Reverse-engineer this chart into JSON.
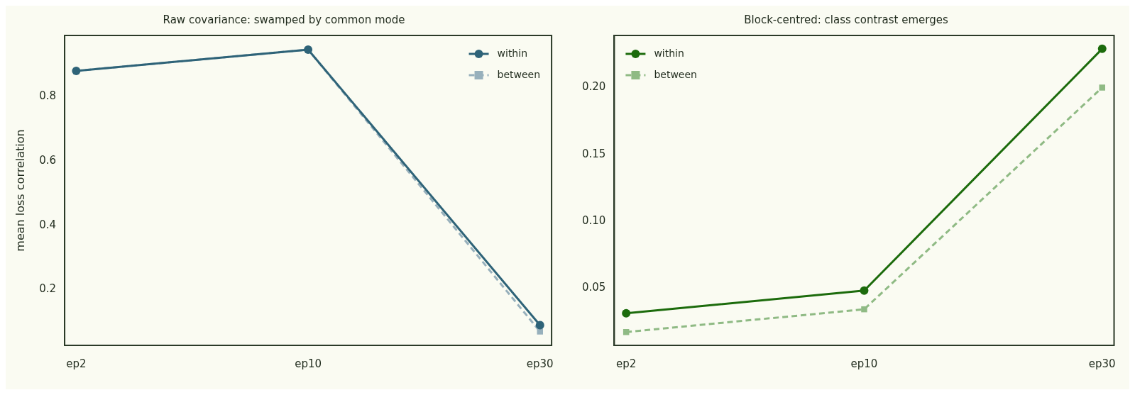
{
  "chart_data": [
    {
      "type": "line",
      "title": "Raw covariance: swamped by common mode",
      "ylabel": "mean loss correlation",
      "categories": [
        "ep2",
        "ep10",
        "ep30"
      ],
      "ylim": [
        0.027,
        0.99
      ],
      "yticks": [
        0.2,
        0.4,
        0.6,
        0.8
      ],
      "grid": false,
      "legend": "top right",
      "series": [
        {
          "name": "within",
          "color": "#2e6378",
          "values": [
            0.88,
            0.946,
            0.09
          ],
          "marker": "circle",
          "line_style": "solid"
        },
        {
          "name": "between",
          "color": "#97b0bc",
          "values": [
            0.88,
            0.946,
            0.07
          ],
          "marker": "square",
          "line_style": "dashed"
        }
      ]
    },
    {
      "type": "line",
      "title": "Block-centred: class contrast emerges",
      "categories": [
        "ep2",
        "ep10",
        "ep30"
      ],
      "ylim": [
        0.007,
        0.239
      ],
      "yticks": [
        0.05,
        {
          "value": 0.1,
          "label": "0.10"
        },
        0.15,
        {
          "value": 0.2,
          "label": "0.20"
        }
      ],
      "grid": false,
      "legend": "top left",
      "series": [
        {
          "name": "within",
          "color": "#1c6b0c",
          "values": [
            0.031,
            0.048,
            0.229
          ],
          "marker": "circle",
          "line_style": "solid"
        },
        {
          "name": "between",
          "color": "#8fba84",
          "values": [
            0.017,
            0.034,
            0.2
          ],
          "marker": "square",
          "line_style": "dashed"
        }
      ]
    }
  ]
}
